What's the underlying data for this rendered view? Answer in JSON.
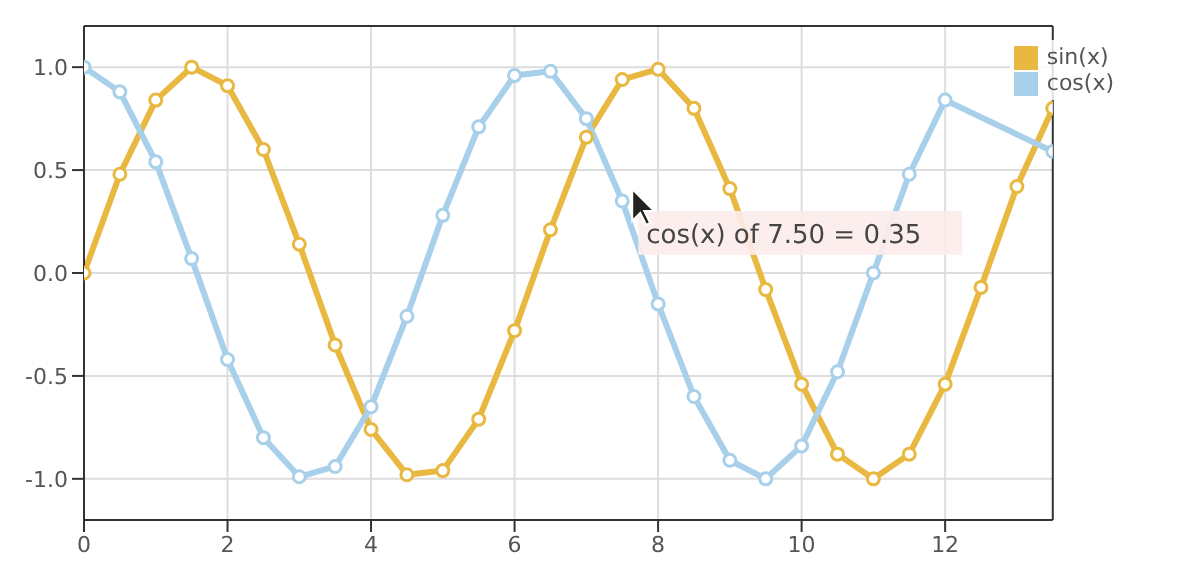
{
  "chart_data": {
    "type": "line",
    "x": [
      0,
      0.5,
      1,
      1.5,
      2,
      2.5,
      3,
      3.5,
      4,
      4.5,
      5,
      5.5,
      6,
      6.5,
      7,
      7.5,
      8,
      8.5,
      9,
      9.5,
      10,
      10.5,
      11,
      11.5,
      12,
      12.5,
      13,
      13.5
    ],
    "series": [
      {
        "name": "sin(x)",
        "color": "#e8b840",
        "values": [
          0,
          0.48,
          0.84,
          1.0,
          0.91,
          0.6,
          0.14,
          -0.35,
          -0.76,
          -0.98,
          -0.96,
          -0.71,
          -0.28,
          0.21,
          0.66,
          0.94,
          0.99,
          0.8,
          0.41,
          -0.08,
          -0.54,
          -0.88,
          -1.0,
          -0.88,
          -0.54,
          -0.07,
          0.42,
          0.8
        ]
      },
      {
        "name": "cos(x)",
        "color": "#a8d0ea",
        "values": [
          1.0,
          0.88,
          0.54,
          0.07,
          -0.42,
          -0.8,
          -0.99,
          -0.94,
          -0.65,
          -0.21,
          0.28,
          0.71,
          0.96,
          0.98,
          0.75,
          0.35,
          -0.15,
          -0.6,
          -0.91,
          -1.0,
          -0.84,
          -0.48,
          0.0,
          0.48,
          0.84,
          null,
          null,
          0.59
        ]
      }
    ],
    "xlim": [
      0,
      13.5
    ],
    "xticks": [
      0,
      2,
      4,
      6,
      8,
      10,
      12
    ],
    "ylim": [
      -1.2,
      1.2
    ],
    "yticks": [
      {
        "value": -1,
        "label": "-1.0"
      },
      {
        "value": -0.5,
        "label": "-0.5"
      },
      {
        "value": 0,
        "label": "0.0"
      },
      {
        "value": 0.5,
        "label": "0.5"
      },
      {
        "value": 1,
        "label": "1.0"
      }
    ],
    "grid": true,
    "legend": "top right",
    "marker": "circle",
    "line_style": "solid",
    "annotations": [
      {
        "text": "cos(x) of 7.50 = 0.35",
        "x": 7.5,
        "y": 0.35
      }
    ]
  }
}
